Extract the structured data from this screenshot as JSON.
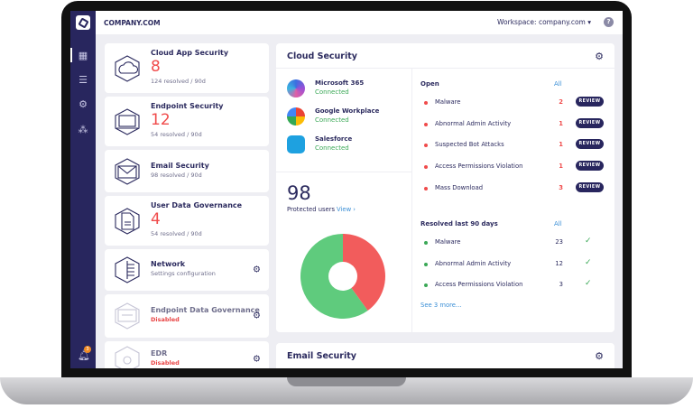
{
  "header": {
    "company": "COMPANY.COM",
    "workspace": "Workspace: company.com ▾",
    "help": "?"
  },
  "sidebar": {
    "items": [
      {
        "icon": "dashboard-icon",
        "glyph": "▦"
      },
      {
        "icon": "list-icon",
        "glyph": "☰"
      },
      {
        "icon": "settings-icon",
        "glyph": "⚙"
      },
      {
        "icon": "network-icon",
        "glyph": "⁂"
      }
    ],
    "notifications": "3"
  },
  "cards": [
    {
      "title": "Cloud App Security",
      "count": "8",
      "sub": "124 resolved / 90d",
      "icon": "cloud-icon"
    },
    {
      "title": "Endpoint Security",
      "count": "12",
      "sub": "54 resolved / 90d",
      "icon": "laptop-icon"
    },
    {
      "title": "Email Security",
      "sub": "98 resolved / 90d",
      "icon": "envelope-icon"
    },
    {
      "title": "User Data Governance",
      "count": "4",
      "sub": "54 resolved / 90d",
      "icon": "document-icon"
    },
    {
      "title": "Network",
      "sub": "Settings configuration",
      "icon": "server-icon"
    },
    {
      "title": "Endpoint Data Governance",
      "sub": "Disabled",
      "icon": "monitor-icon"
    },
    {
      "title": "EDR",
      "sub": "Disabled",
      "icon": "bug-icon"
    }
  ],
  "cloud": {
    "title": "Cloud Security",
    "connections": [
      {
        "name": "Microsoft 365",
        "status": "Connected",
        "color": "#6a4fd6"
      },
      {
        "name": "Google Workplace",
        "status": "Connected",
        "color": "#4285f4"
      },
      {
        "name": "Salesforce",
        "status": "Connected",
        "color": "#1ea1e0"
      }
    ],
    "protected_count": "98",
    "protected_label": "Protected users",
    "view_label": "View ›",
    "pie": {
      "open_pct": 40,
      "ok_pct": 60,
      "colors": {
        "open": "#f25c5c",
        "ok": "#5fcb7d"
      }
    },
    "open_label": "Open",
    "all_label": "All",
    "review_label": "REVIEW",
    "open": [
      {
        "name": "Malware",
        "count": "2"
      },
      {
        "name": "Abnormal Admin Activity",
        "count": "1"
      },
      {
        "name": "Suspected Bot Attacks",
        "count": "1"
      },
      {
        "name": "Access Permissions Violation",
        "count": "1"
      },
      {
        "name": "Mass Download",
        "count": "3"
      }
    ],
    "resolved_label": "Resolved last 90 days",
    "resolved": [
      {
        "name": "Malware",
        "count": "23"
      },
      {
        "name": "Abnormal Admin Activity",
        "count": "12"
      },
      {
        "name": "Access Permissions Violation",
        "count": "3"
      }
    ],
    "see_more": "See 3 more..."
  },
  "email": {
    "title": "Email Security"
  }
}
